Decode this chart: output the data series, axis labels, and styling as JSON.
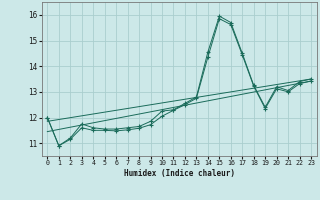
{
  "title": "",
  "xlabel": "Humidex (Indice chaleur)",
  "ylabel": "",
  "bg_color": "#cce8e8",
  "line_color": "#1a6b5a",
  "grid_color": "#aacece",
  "xlim": [
    -0.5,
    23.5
  ],
  "ylim": [
    10.5,
    16.5
  ],
  "xticks": [
    0,
    1,
    2,
    3,
    4,
    5,
    6,
    7,
    8,
    9,
    10,
    11,
    12,
    13,
    14,
    15,
    16,
    17,
    18,
    19,
    20,
    21,
    22,
    23
  ],
  "yticks": [
    11,
    12,
    13,
    14,
    15,
    16
  ],
  "series": [
    {
      "x": [
        0,
        1,
        2,
        3,
        4,
        5,
        6,
        7,
        8,
        9,
        10,
        11,
        12,
        13,
        14,
        15,
        16,
        17,
        18,
        19,
        20,
        21,
        22,
        23
      ],
      "y": [
        12.0,
        10.9,
        11.2,
        11.75,
        11.6,
        11.55,
        11.55,
        11.6,
        11.65,
        11.85,
        12.25,
        12.3,
        12.55,
        12.8,
        14.55,
        15.95,
        15.7,
        14.5,
        13.25,
        12.4,
        13.2,
        13.05,
        13.4,
        13.5
      ],
      "marker": "+"
    },
    {
      "x": [
        0,
        1,
        2,
        3,
        4,
        5,
        6,
        7,
        8,
        9,
        10,
        11,
        12,
        13,
        14,
        15,
        16,
        17,
        18,
        19,
        20,
        21,
        22,
        23
      ],
      "y": [
        12.0,
        10.9,
        11.15,
        11.6,
        11.5,
        11.5,
        11.48,
        11.52,
        11.58,
        11.72,
        12.05,
        12.28,
        12.5,
        12.75,
        14.35,
        15.85,
        15.62,
        14.44,
        13.22,
        12.35,
        13.12,
        13.0,
        13.32,
        13.42
      ],
      "marker": "+"
    },
    {
      "x": [
        0,
        23
      ],
      "y": [
        11.85,
        13.5
      ],
      "marker": null
    },
    {
      "x": [
        0,
        23
      ],
      "y": [
        11.45,
        13.42
      ],
      "marker": null
    }
  ]
}
